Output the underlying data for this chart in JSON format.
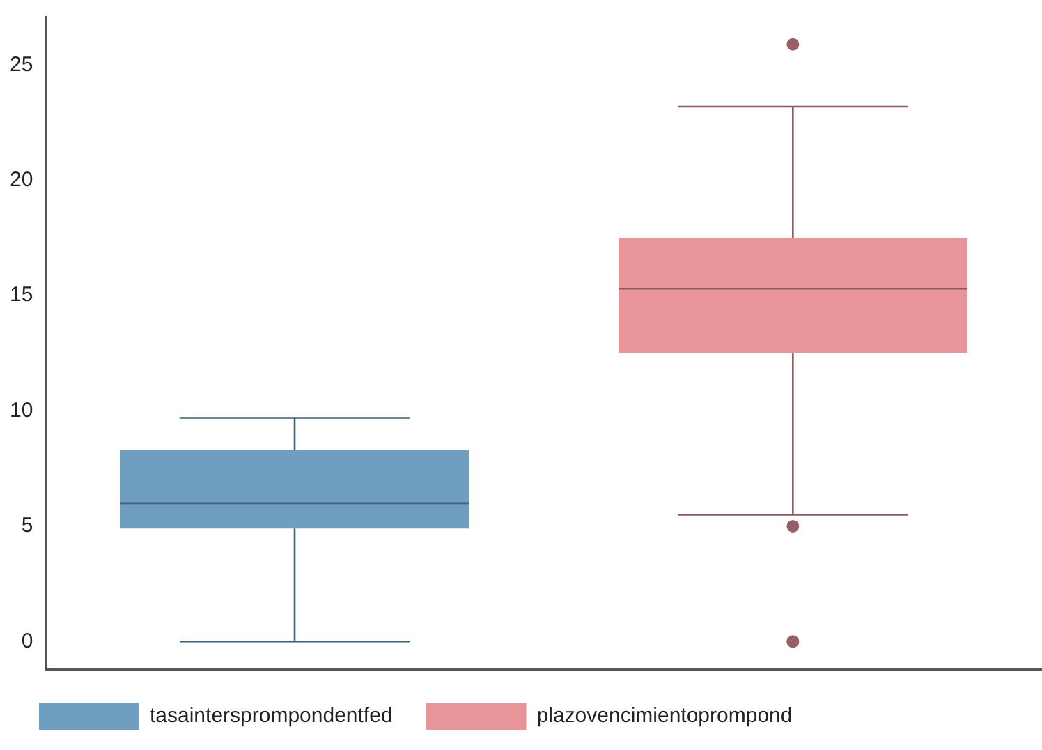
{
  "chart_data": {
    "type": "box",
    "categories": [
      null,
      null
    ],
    "ylim": [
      -1.2,
      27.1
    ],
    "yticks": [
      0,
      5,
      10,
      15,
      20,
      25
    ],
    "grid": false,
    "legend": "bottom",
    "tick_labels": "y",
    "series": [
      {
        "name": "tasaintersprompondentfed",
        "color": "#6f9ec0",
        "boxes": [
          {
            "low": 0,
            "q1": 4.9,
            "median": 6.0,
            "q3": 8.3,
            "high": 9.7
          },
          null
        ]
      },
      {
        "name": "plazovencimientoprompond",
        "color": "#e8949b",
        "boxes": [
          null,
          {
            "low": 5.5,
            "q1": 12.5,
            "median": 15.3,
            "q3": 17.5,
            "high": 23.2,
            "outliers": [
              25.9,
              5.0,
              0
            ]
          }
        ]
      }
    ]
  }
}
